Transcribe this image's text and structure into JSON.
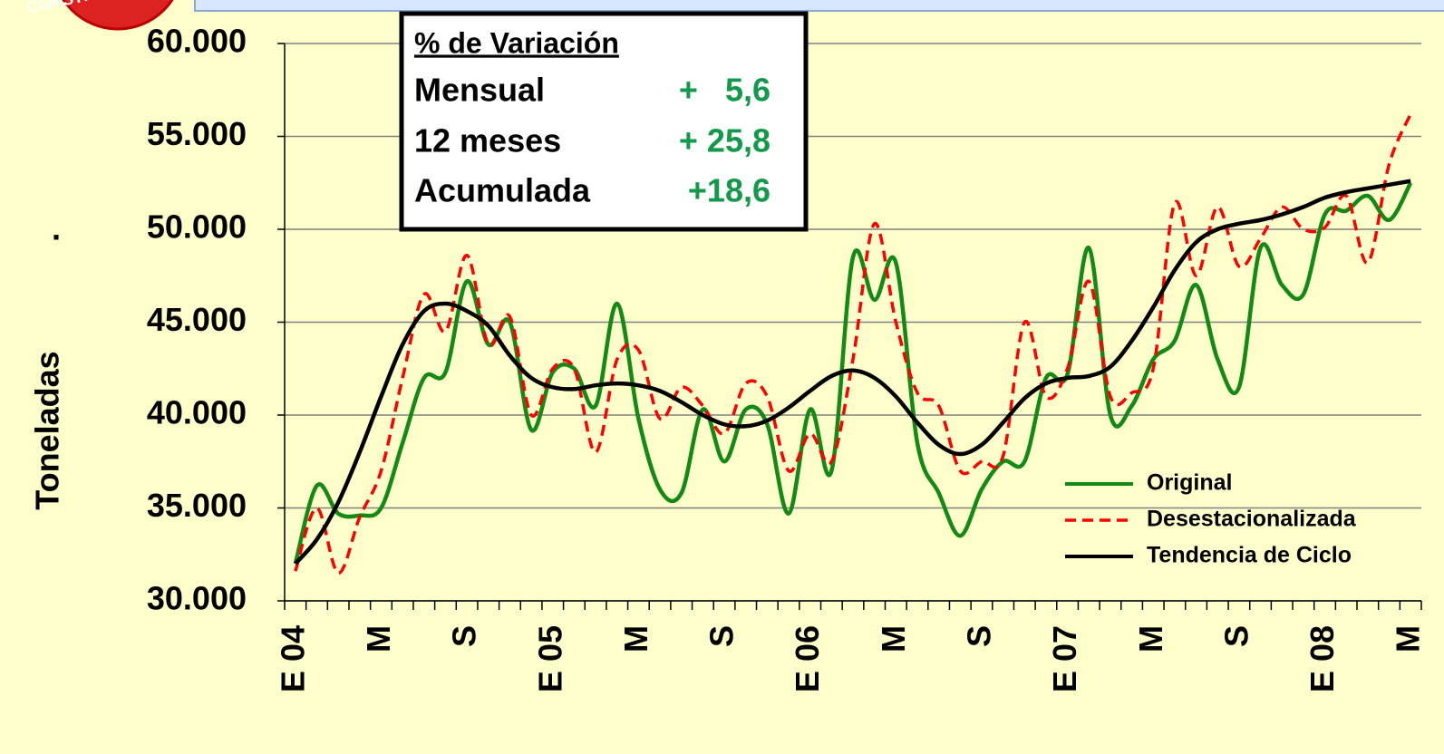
{
  "logo_text": "CONSTR",
  "chart_data": {
    "type": "line",
    "y_axis_label": "Toneladas",
    "y_axis_note": ".",
    "categories": [
      "E 04",
      null,
      null,
      null,
      "M",
      null,
      null,
      null,
      "S",
      null,
      null,
      null,
      "E 05",
      null,
      null,
      null,
      "M",
      null,
      null,
      null,
      "S",
      null,
      null,
      null,
      "E 06",
      null,
      null,
      null,
      "M",
      null,
      null,
      null,
      "S",
      null,
      null,
      null,
      "E 07",
      null,
      null,
      null,
      "M",
      null,
      null,
      null,
      "S",
      null,
      null,
      null,
      "E 08",
      null,
      null,
      null,
      "M"
    ],
    "series": [
      {
        "name": "Original",
        "color": "#138a13",
        "dash": false,
        "values": [
          32000,
          36200,
          34700,
          34600,
          35000,
          38500,
          42000,
          42300,
          47200,
          43800,
          45000,
          39200,
          42300,
          42500,
          40500,
          46000,
          39800,
          36000,
          35800,
          40300,
          37500,
          40300,
          39500,
          34700,
          40300,
          37000,
          48500,
          46200,
          48200,
          38500,
          35800,
          33500,
          36000,
          37500,
          37500,
          42000,
          42200,
          49000,
          40000,
          40500,
          43000,
          44000,
          47000,
          43000,
          41500,
          49000,
          47000,
          46500,
          50800,
          51000,
          51800,
          50500,
          52500
        ]
      },
      {
        "name": "Desestacionalizada",
        "color": "#ff0000",
        "dash": true,
        "values": [
          31600,
          35000,
          31500,
          34500,
          37000,
          42000,
          46500,
          44500,
          48600,
          43800,
          45300,
          40000,
          42500,
          42500,
          38000,
          43000,
          43500,
          39800,
          41500,
          40500,
          39000,
          41700,
          41000,
          37000,
          39000,
          37500,
          43000,
          50300,
          45000,
          41200,
          40500,
          37000,
          37500,
          37800,
          45000,
          41000,
          42500,
          47200,
          41000,
          41200,
          42500,
          51400,
          47500,
          51200,
          48000,
          49500,
          51200,
          50000,
          50100,
          51800,
          48200,
          53500,
          56200
        ]
      },
      {
        "name": "Tendencia de Ciclo",
        "color": "#000000",
        "dash": false,
        "values": [
          32000,
          33300,
          35300,
          38000,
          41000,
          43800,
          45600,
          46000,
          45600,
          44800,
          43200,
          42000,
          41500,
          41400,
          41600,
          41700,
          41600,
          41300,
          40700,
          40000,
          39500,
          39400,
          39700,
          40400,
          41300,
          42100,
          42400,
          42000,
          41000,
          39600,
          38400,
          37900,
          38400,
          39600,
          40900,
          41700,
          42000,
          42100,
          42600,
          44000,
          45800,
          47800,
          49300,
          50000,
          50300,
          50500,
          50800,
          51200,
          51700,
          52000,
          52200,
          52400,
          52600
        ]
      }
    ],
    "ylim": [
      30000,
      60000
    ],
    "yticks": [
      {
        "value": 30000,
        "label": "30.000"
      },
      {
        "value": 35000,
        "label": "35.000"
      },
      {
        "value": 40000,
        "label": "40.000"
      },
      {
        "value": 45000,
        "label": "45.000"
      },
      {
        "value": 50000,
        "label": "50.000"
      },
      {
        "value": 55000,
        "label": "55.000"
      },
      {
        "value": 60000,
        "label": "60.000"
      }
    ],
    "grid": true,
    "legend": "lower right",
    "variation_box": {
      "title": "% de Variación",
      "rows": [
        {
          "label": "Mensual",
          "value": "+   5,6"
        },
        {
          "label": "12 meses",
          "value": "+ 25,8"
        },
        {
          "label": "Acumulada",
          "value": "+18,6"
        }
      ]
    }
  }
}
